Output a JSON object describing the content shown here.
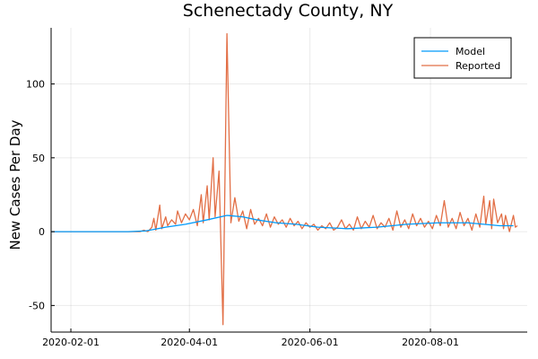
{
  "chart_data": {
    "type": "line",
    "title": "Schenectady County, NY",
    "xlabel": "",
    "ylabel": "New Cases Per Day",
    "x_axis": "date",
    "xlim": [
      "2020-01-22",
      "2020-09-19"
    ],
    "ylim": [
      -68,
      138
    ],
    "x_ticks": [
      "2020-02-01",
      "2020-04-01",
      "2020-06-01",
      "2020-08-01"
    ],
    "y_ticks": [
      -50,
      0,
      50,
      100
    ],
    "grid": true,
    "legend": {
      "position": "top-right"
    },
    "series": [
      {
        "name": "Model",
        "color": "#009AFA",
        "points": [
          [
            "2020-01-22",
            0
          ],
          [
            "2020-03-01",
            0
          ],
          [
            "2020-03-10",
            0.5
          ],
          [
            "2020-03-20",
            3
          ],
          [
            "2020-03-30",
            5
          ],
          [
            "2020-04-10",
            8
          ],
          [
            "2020-04-20",
            11
          ],
          [
            "2020-04-28",
            10
          ],
          [
            "2020-05-05",
            8
          ],
          [
            "2020-05-15",
            6
          ],
          [
            "2020-05-25",
            5
          ],
          [
            "2020-06-05",
            3
          ],
          [
            "2020-06-20",
            2
          ],
          [
            "2020-07-05",
            3
          ],
          [
            "2020-07-20",
            5
          ],
          [
            "2020-08-05",
            6
          ],
          [
            "2020-08-20",
            6
          ],
          [
            "2020-09-05",
            4
          ],
          [
            "2020-09-12",
            4
          ]
        ]
      },
      {
        "name": "Reported",
        "color": "#E26F46",
        "points": [
          [
            "2020-01-22",
            0
          ],
          [
            "2020-03-07",
            0
          ],
          [
            "2020-03-09",
            1
          ],
          [
            "2020-03-11",
            0
          ],
          [
            "2020-03-13",
            3
          ],
          [
            "2020-03-14",
            9
          ],
          [
            "2020-03-15",
            1
          ],
          [
            "2020-03-17",
            18
          ],
          [
            "2020-03-18",
            2
          ],
          [
            "2020-03-20",
            10
          ],
          [
            "2020-03-21",
            4
          ],
          [
            "2020-03-23",
            8
          ],
          [
            "2020-03-25",
            5
          ],
          [
            "2020-03-26",
            14
          ],
          [
            "2020-03-28",
            6
          ],
          [
            "2020-03-30",
            12
          ],
          [
            "2020-04-01",
            8
          ],
          [
            "2020-04-03",
            15
          ],
          [
            "2020-04-05",
            4
          ],
          [
            "2020-04-07",
            25
          ],
          [
            "2020-04-08",
            6
          ],
          [
            "2020-04-10",
            31
          ],
          [
            "2020-04-11",
            8
          ],
          [
            "2020-04-13",
            50
          ],
          [
            "2020-04-14",
            10
          ],
          [
            "2020-04-16",
            41
          ],
          [
            "2020-04-18",
            -63
          ],
          [
            "2020-04-20",
            134
          ],
          [
            "2020-04-22",
            6
          ],
          [
            "2020-04-24",
            23
          ],
          [
            "2020-04-26",
            7
          ],
          [
            "2020-04-28",
            14
          ],
          [
            "2020-04-30",
            2
          ],
          [
            "2020-05-02",
            15
          ],
          [
            "2020-05-04",
            5
          ],
          [
            "2020-05-06",
            9
          ],
          [
            "2020-05-08",
            4
          ],
          [
            "2020-05-10",
            12
          ],
          [
            "2020-05-12",
            3
          ],
          [
            "2020-05-14",
            10
          ],
          [
            "2020-05-16",
            5
          ],
          [
            "2020-05-18",
            8
          ],
          [
            "2020-05-20",
            3
          ],
          [
            "2020-05-22",
            9
          ],
          [
            "2020-05-24",
            4
          ],
          [
            "2020-05-26",
            7
          ],
          [
            "2020-05-28",
            2
          ],
          [
            "2020-05-30",
            6
          ],
          [
            "2020-06-01",
            3
          ],
          [
            "2020-06-03",
            5
          ],
          [
            "2020-06-05",
            1
          ],
          [
            "2020-06-07",
            4
          ],
          [
            "2020-06-09",
            2
          ],
          [
            "2020-06-11",
            6
          ],
          [
            "2020-06-13",
            1
          ],
          [
            "2020-06-15",
            3
          ],
          [
            "2020-06-17",
            8
          ],
          [
            "2020-06-19",
            2
          ],
          [
            "2020-06-21",
            5
          ],
          [
            "2020-06-23",
            1
          ],
          [
            "2020-06-25",
            10
          ],
          [
            "2020-06-27",
            2
          ],
          [
            "2020-06-29",
            7
          ],
          [
            "2020-07-01",
            3
          ],
          [
            "2020-07-03",
            11
          ],
          [
            "2020-07-05",
            2
          ],
          [
            "2020-07-07",
            6
          ],
          [
            "2020-07-09",
            3
          ],
          [
            "2020-07-11",
            9
          ],
          [
            "2020-07-13",
            1
          ],
          [
            "2020-07-15",
            14
          ],
          [
            "2020-07-17",
            3
          ],
          [
            "2020-07-19",
            8
          ],
          [
            "2020-07-21",
            2
          ],
          [
            "2020-07-23",
            12
          ],
          [
            "2020-07-25",
            4
          ],
          [
            "2020-07-27",
            9
          ],
          [
            "2020-07-29",
            3
          ],
          [
            "2020-07-31",
            7
          ],
          [
            "2020-08-02",
            2
          ],
          [
            "2020-08-04",
            11
          ],
          [
            "2020-08-06",
            4
          ],
          [
            "2020-08-08",
            21
          ],
          [
            "2020-08-10",
            3
          ],
          [
            "2020-08-12",
            9
          ],
          [
            "2020-08-14",
            2
          ],
          [
            "2020-08-16",
            13
          ],
          [
            "2020-08-18",
            4
          ],
          [
            "2020-08-20",
            9
          ],
          [
            "2020-08-22",
            1
          ],
          [
            "2020-08-24",
            12
          ],
          [
            "2020-08-26",
            3
          ],
          [
            "2020-08-28",
            24
          ],
          [
            "2020-08-29",
            5
          ],
          [
            "2020-08-31",
            21
          ],
          [
            "2020-09-01",
            2
          ],
          [
            "2020-09-02",
            22
          ],
          [
            "2020-09-04",
            6
          ],
          [
            "2020-09-06",
            12
          ],
          [
            "2020-09-07",
            2
          ],
          [
            "2020-09-08",
            11
          ],
          [
            "2020-09-10",
            0
          ],
          [
            "2020-09-12",
            11
          ],
          [
            "2020-09-13",
            3
          ],
          [
            "2020-09-14",
            4
          ]
        ]
      }
    ]
  }
}
